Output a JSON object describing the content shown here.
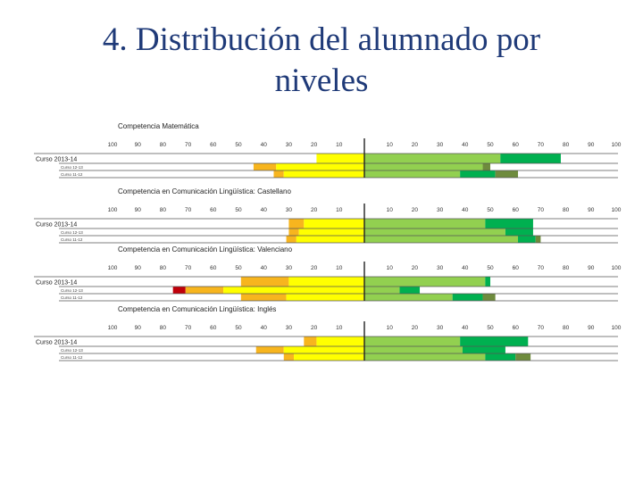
{
  "slide": {
    "title_line1": "4. Distribución del alumnado por",
    "title_line2": "niveles"
  },
  "chart_data": {
    "type": "bar",
    "subtype": "diverging-stacked",
    "ticks_left": [
      "100",
      "90",
      "80",
      "70",
      "60",
      "50",
      "40",
      "30",
      "20",
      "10"
    ],
    "ticks_right": [
      "10",
      "20",
      "30",
      "40",
      "50",
      "60",
      "70",
      "80",
      "90",
      "100"
    ],
    "xlim": [
      -100,
      100
    ],
    "colors": {
      "red": "#c0000a",
      "orange": "#f7b51e",
      "yellow": "#ffff00",
      "lightgreen": "#92d050",
      "green": "#00b050",
      "olive": "#6e8b3d"
    },
    "panels": [
      {
        "title": "Competencia Matemática",
        "rows": [
          {
            "label": "Curso 2013-14",
            "segments": [
              {
                "color": "yellow",
                "start": -19,
                "end": 0
              },
              {
                "color": "lightgreen",
                "start": 0,
                "end": 54
              },
              {
                "color": "green",
                "start": 54,
                "end": 78
              }
            ]
          },
          {
            "label": "Curso 12-13",
            "segments": [
              {
                "color": "orange",
                "start": -44,
                "end": -35
              },
              {
                "color": "yellow",
                "start": -35,
                "end": 0
              },
              {
                "color": "lightgreen",
                "start": 0,
                "end": 47
              },
              {
                "color": "olive",
                "start": 47,
                "end": 50
              }
            ]
          },
          {
            "label": "Curso 11-12",
            "segments": [
              {
                "color": "orange",
                "start": -36,
                "end": -32
              },
              {
                "color": "yellow",
                "start": -32,
                "end": 0
              },
              {
                "color": "lightgreen",
                "start": 0,
                "end": 38
              },
              {
                "color": "green",
                "start": 38,
                "end": 52
              },
              {
                "color": "olive",
                "start": 52,
                "end": 61
              }
            ]
          }
        ]
      },
      {
        "title": "Competencia en Comunicación Lingüística: Castellano",
        "rows": [
          {
            "label": "Curso 2013-14",
            "segments": [
              {
                "color": "orange",
                "start": -30,
                "end": -24
              },
              {
                "color": "yellow",
                "start": -24,
                "end": 0
              },
              {
                "color": "lightgreen",
                "start": 0,
                "end": 48
              },
              {
                "color": "green",
                "start": 48,
                "end": 67
              }
            ]
          },
          {
            "label": "Curso 12-13",
            "segments": [
              {
                "color": "orange",
                "start": -30,
                "end": -26
              },
              {
                "color": "yellow",
                "start": -26,
                "end": 0
              },
              {
                "color": "lightgreen",
                "start": 0,
                "end": 56
              },
              {
                "color": "green",
                "start": 56,
                "end": 67
              }
            ]
          },
          {
            "label": "Curso 11-12",
            "segments": [
              {
                "color": "orange",
                "start": -31,
                "end": -27
              },
              {
                "color": "yellow",
                "start": -27,
                "end": 0
              },
              {
                "color": "lightgreen",
                "start": 0,
                "end": 61
              },
              {
                "color": "green",
                "start": 61,
                "end": 68
              },
              {
                "color": "olive",
                "start": 68,
                "end": 70
              }
            ]
          }
        ]
      },
      {
        "title": "Competencia en Comunicación Lingüística: Valenciano",
        "rows": [
          {
            "label": "Curso 2013-14",
            "segments": [
              {
                "color": "orange",
                "start": -49,
                "end": -30
              },
              {
                "color": "yellow",
                "start": -30,
                "end": 0
              },
              {
                "color": "lightgreen",
                "start": 0,
                "end": 48
              },
              {
                "color": "green",
                "start": 48,
                "end": 50
              }
            ]
          },
          {
            "label": "Curso 12-13",
            "segments": [
              {
                "color": "red",
                "start": -76,
                "end": -71
              },
              {
                "color": "orange",
                "start": -71,
                "end": -56
              },
              {
                "color": "yellow",
                "start": -56,
                "end": 0
              },
              {
                "color": "lightgreen",
                "start": 0,
                "end": 14
              },
              {
                "color": "green",
                "start": 14,
                "end": 22
              }
            ]
          },
          {
            "label": "Curso 11-12",
            "segments": [
              {
                "color": "orange",
                "start": -49,
                "end": -31
              },
              {
                "color": "yellow",
                "start": -31,
                "end": 0
              },
              {
                "color": "lightgreen",
                "start": 0,
                "end": 35
              },
              {
                "color": "green",
                "start": 35,
                "end": 47
              },
              {
                "color": "olive",
                "start": 47,
                "end": 52
              }
            ]
          }
        ]
      },
      {
        "title": "Competencia en Comunicación Lingüística: Inglés",
        "rows": [
          {
            "label": "Curso 2013-14",
            "segments": [
              {
                "color": "orange",
                "start": -24,
                "end": -19
              },
              {
                "color": "yellow",
                "start": -19,
                "end": 0
              },
              {
                "color": "lightgreen",
                "start": 0,
                "end": 38
              },
              {
                "color": "green",
                "start": 38,
                "end": 65
              }
            ]
          },
          {
            "label": "Curso 12-13",
            "segments": [
              {
                "color": "orange",
                "start": -43,
                "end": -32
              },
              {
                "color": "yellow",
                "start": -32,
                "end": 0
              },
              {
                "color": "lightgreen",
                "start": 0,
                "end": 39
              },
              {
                "color": "green",
                "start": 39,
                "end": 56
              }
            ]
          },
          {
            "label": "Curso 11-12",
            "segments": [
              {
                "color": "orange",
                "start": -32,
                "end": -28
              },
              {
                "color": "yellow",
                "start": -28,
                "end": 0
              },
              {
                "color": "lightgreen",
                "start": 0,
                "end": 48
              },
              {
                "color": "green",
                "start": 48,
                "end": 60
              },
              {
                "color": "olive",
                "start": 60,
                "end": 66
              }
            ]
          }
        ]
      }
    ]
  }
}
